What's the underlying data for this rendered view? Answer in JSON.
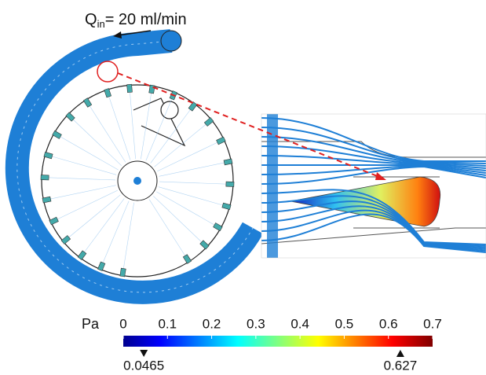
{
  "annotation": {
    "symbol": "Q",
    "subscript": "in",
    "text": "= 20 ml/min"
  },
  "colorbar": {
    "unit": "Pa",
    "range": [
      0,
      0.7
    ],
    "ticks": [
      0,
      0.1,
      0.2,
      0.3,
      0.4,
      0.5,
      0.6,
      0.7
    ],
    "min": 0.0465,
    "max": 0.627
  }
}
